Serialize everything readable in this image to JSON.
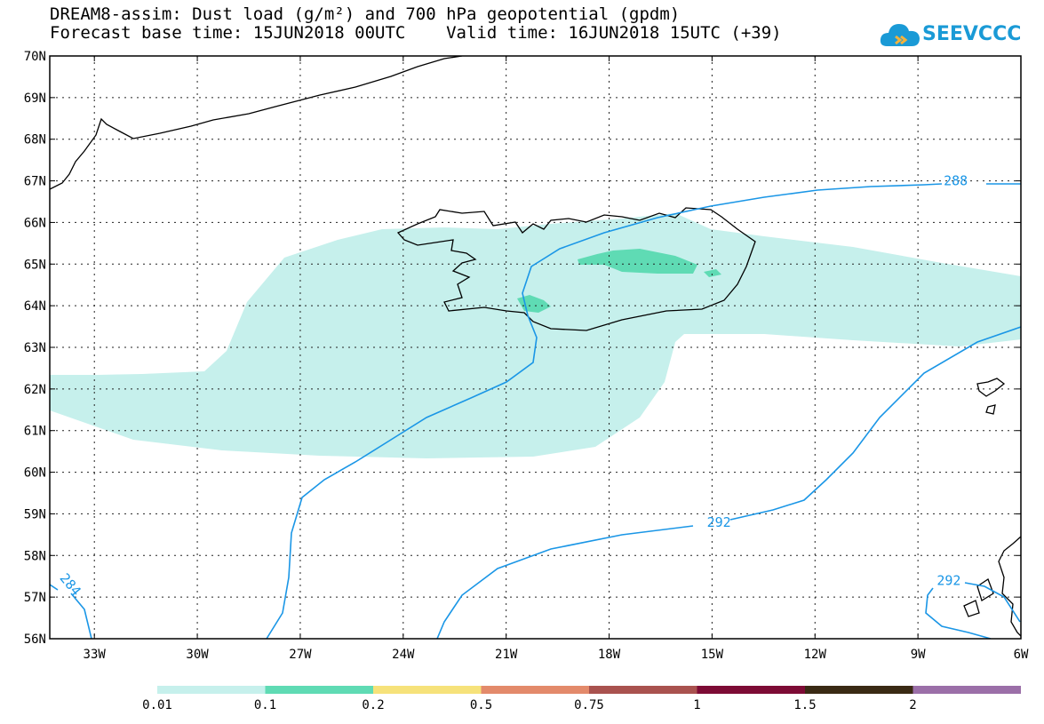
{
  "title_line1": "DREAM8-assim: Dust load (g/m²) and 700 hPa geopotential (gpdm)",
  "title_line2": "Forecast base time: 15JUN2018 00UTC    Valid time: 16JUN2018 15UTC (+39)",
  "logo_text": "SEEVCCC",
  "logo_icon": "cloud-logo-icon",
  "map": {
    "lon_range": [
      -34.3,
      -6
    ],
    "lat_range": [
      56,
      70
    ],
    "lat_ticks": [
      "56N",
      "57N",
      "58N",
      "59N",
      "60N",
      "61N",
      "62N",
      "63N",
      "64N",
      "65N",
      "66N",
      "67N",
      "68N",
      "69N",
      "70N"
    ],
    "lon_ticks": [
      {
        "lon": -33,
        "label": "33W"
      },
      {
        "lon": -30,
        "label": "30W"
      },
      {
        "lon": -27,
        "label": "27W"
      },
      {
        "lon": -24,
        "label": "24W"
      },
      {
        "lon": -21,
        "label": "21W"
      },
      {
        "lon": -18,
        "label": "18W"
      },
      {
        "lon": -15,
        "label": "15W"
      },
      {
        "lon": -12,
        "label": "12W"
      },
      {
        "lon": -9,
        "label": "9W"
      },
      {
        "lon": -6,
        "label": "6W"
      }
    ],
    "grid": "dotted",
    "contour_color": "#1a96e6",
    "contour_labels": [
      {
        "text": "288",
        "lon": -7.9,
        "lat": 67.0
      },
      {
        "text": "292",
        "lon": -14.8,
        "lat": 58.8
      },
      {
        "text": "292",
        "lon": -8.1,
        "lat": 57.4
      },
      {
        "text": "284",
        "lon": -33.7,
        "lat": 57.3
      }
    ]
  },
  "colorbar": {
    "colors": [
      "#c6f0ec",
      "#5fdbb4",
      "#f6e27a",
      "#e38a6b",
      "#a9524f",
      "#7d0b35",
      "#3a2a14",
      "#9b6fa8"
    ],
    "labels": [
      "0.01",
      "0.1",
      "0.2",
      "0.5",
      "0.75",
      "1",
      "1.5",
      "2"
    ]
  }
}
